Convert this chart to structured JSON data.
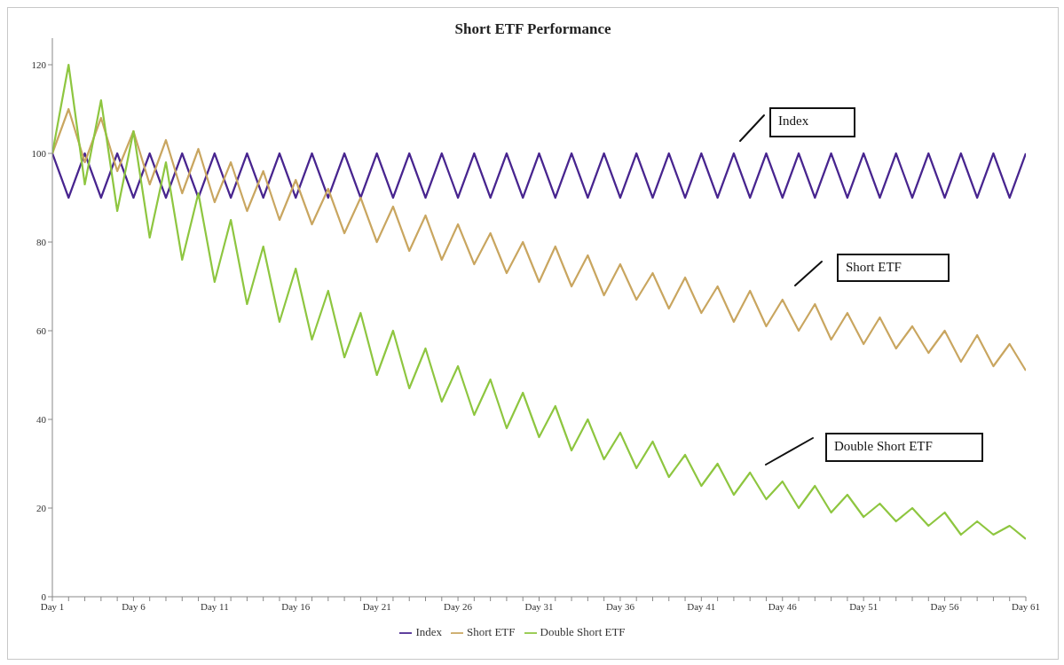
{
  "chart_data": {
    "type": "line",
    "title": "Short ETF Performance",
    "categories": [
      "Day 1",
      null,
      null,
      null,
      null,
      "Day 6",
      null,
      null,
      null,
      null,
      "Day 11",
      null,
      null,
      null,
      null,
      "Day 16",
      null,
      null,
      null,
      null,
      "Day 21",
      null,
      null,
      null,
      null,
      "Day 26",
      null,
      null,
      null,
      null,
      "Day 31",
      null,
      null,
      null,
      null,
      "Day 36",
      null,
      null,
      null,
      null,
      "Day 41",
      null,
      null,
      null,
      null,
      "Day 46",
      null,
      null,
      null,
      null,
      "Day 51",
      null,
      null,
      null,
      null,
      "Day 56",
      null,
      null,
      null,
      null,
      "Day 61"
    ],
    "series": [
      {
        "name": "Index",
        "color": "#48258f",
        "values": [
          100,
          90,
          100,
          90,
          100,
          90,
          100,
          90,
          100,
          90,
          100,
          90,
          100,
          90,
          100,
          90,
          100,
          90,
          100,
          90,
          100,
          90,
          100,
          90,
          100,
          90,
          100,
          90,
          100,
          90,
          100,
          90,
          100,
          90,
          100,
          90,
          100,
          90,
          100,
          90,
          100,
          90,
          100,
          90,
          100,
          90,
          100,
          90,
          100,
          90,
          100,
          90,
          100,
          90,
          100,
          90,
          100,
          90,
          100,
          90,
          100
        ]
      },
      {
        "name": "Short ETF",
        "color": "#c9a660",
        "values": [
          100,
          110,
          98,
          108,
          96,
          105,
          93,
          103,
          91,
          101,
          89,
          98,
          87,
          96,
          85,
          94,
          84,
          92,
          82,
          90,
          80,
          88,
          78,
          86,
          76,
          84,
          75,
          82,
          73,
          80,
          71,
          79,
          70,
          77,
          68,
          75,
          67,
          73,
          65,
          72,
          64,
          70,
          62,
          69,
          61,
          67,
          60,
          66,
          58,
          64,
          57,
          63,
          56,
          61,
          55,
          60,
          53,
          59,
          52,
          57,
          51
        ]
      },
      {
        "name": "Double Short ETF",
        "color": "#8ec640",
        "values": [
          100,
          120,
          93,
          112,
          87,
          105,
          81,
          98,
          76,
          91,
          71,
          85,
          66,
          79,
          62,
          74,
          58,
          69,
          54,
          64,
          50,
          60,
          47,
          56,
          44,
          52,
          41,
          49,
          38,
          46,
          36,
          43,
          33,
          40,
          31,
          37,
          29,
          35,
          27,
          32,
          25,
          30,
          23,
          28,
          22,
          26,
          20,
          25,
          19,
          23,
          18,
          21,
          17,
          20,
          16,
          19,
          14,
          17,
          14,
          16,
          13
        ]
      }
    ],
    "ylim": [
      0,
      126
    ],
    "yticks": [
      0,
      20,
      40,
      60,
      80,
      100,
      120
    ],
    "grid": false,
    "legend": "bottom",
    "marker": "none",
    "line_style": "solid",
    "annotations": [
      "Index",
      "Short ETF",
      "Double Short ETF"
    ]
  }
}
